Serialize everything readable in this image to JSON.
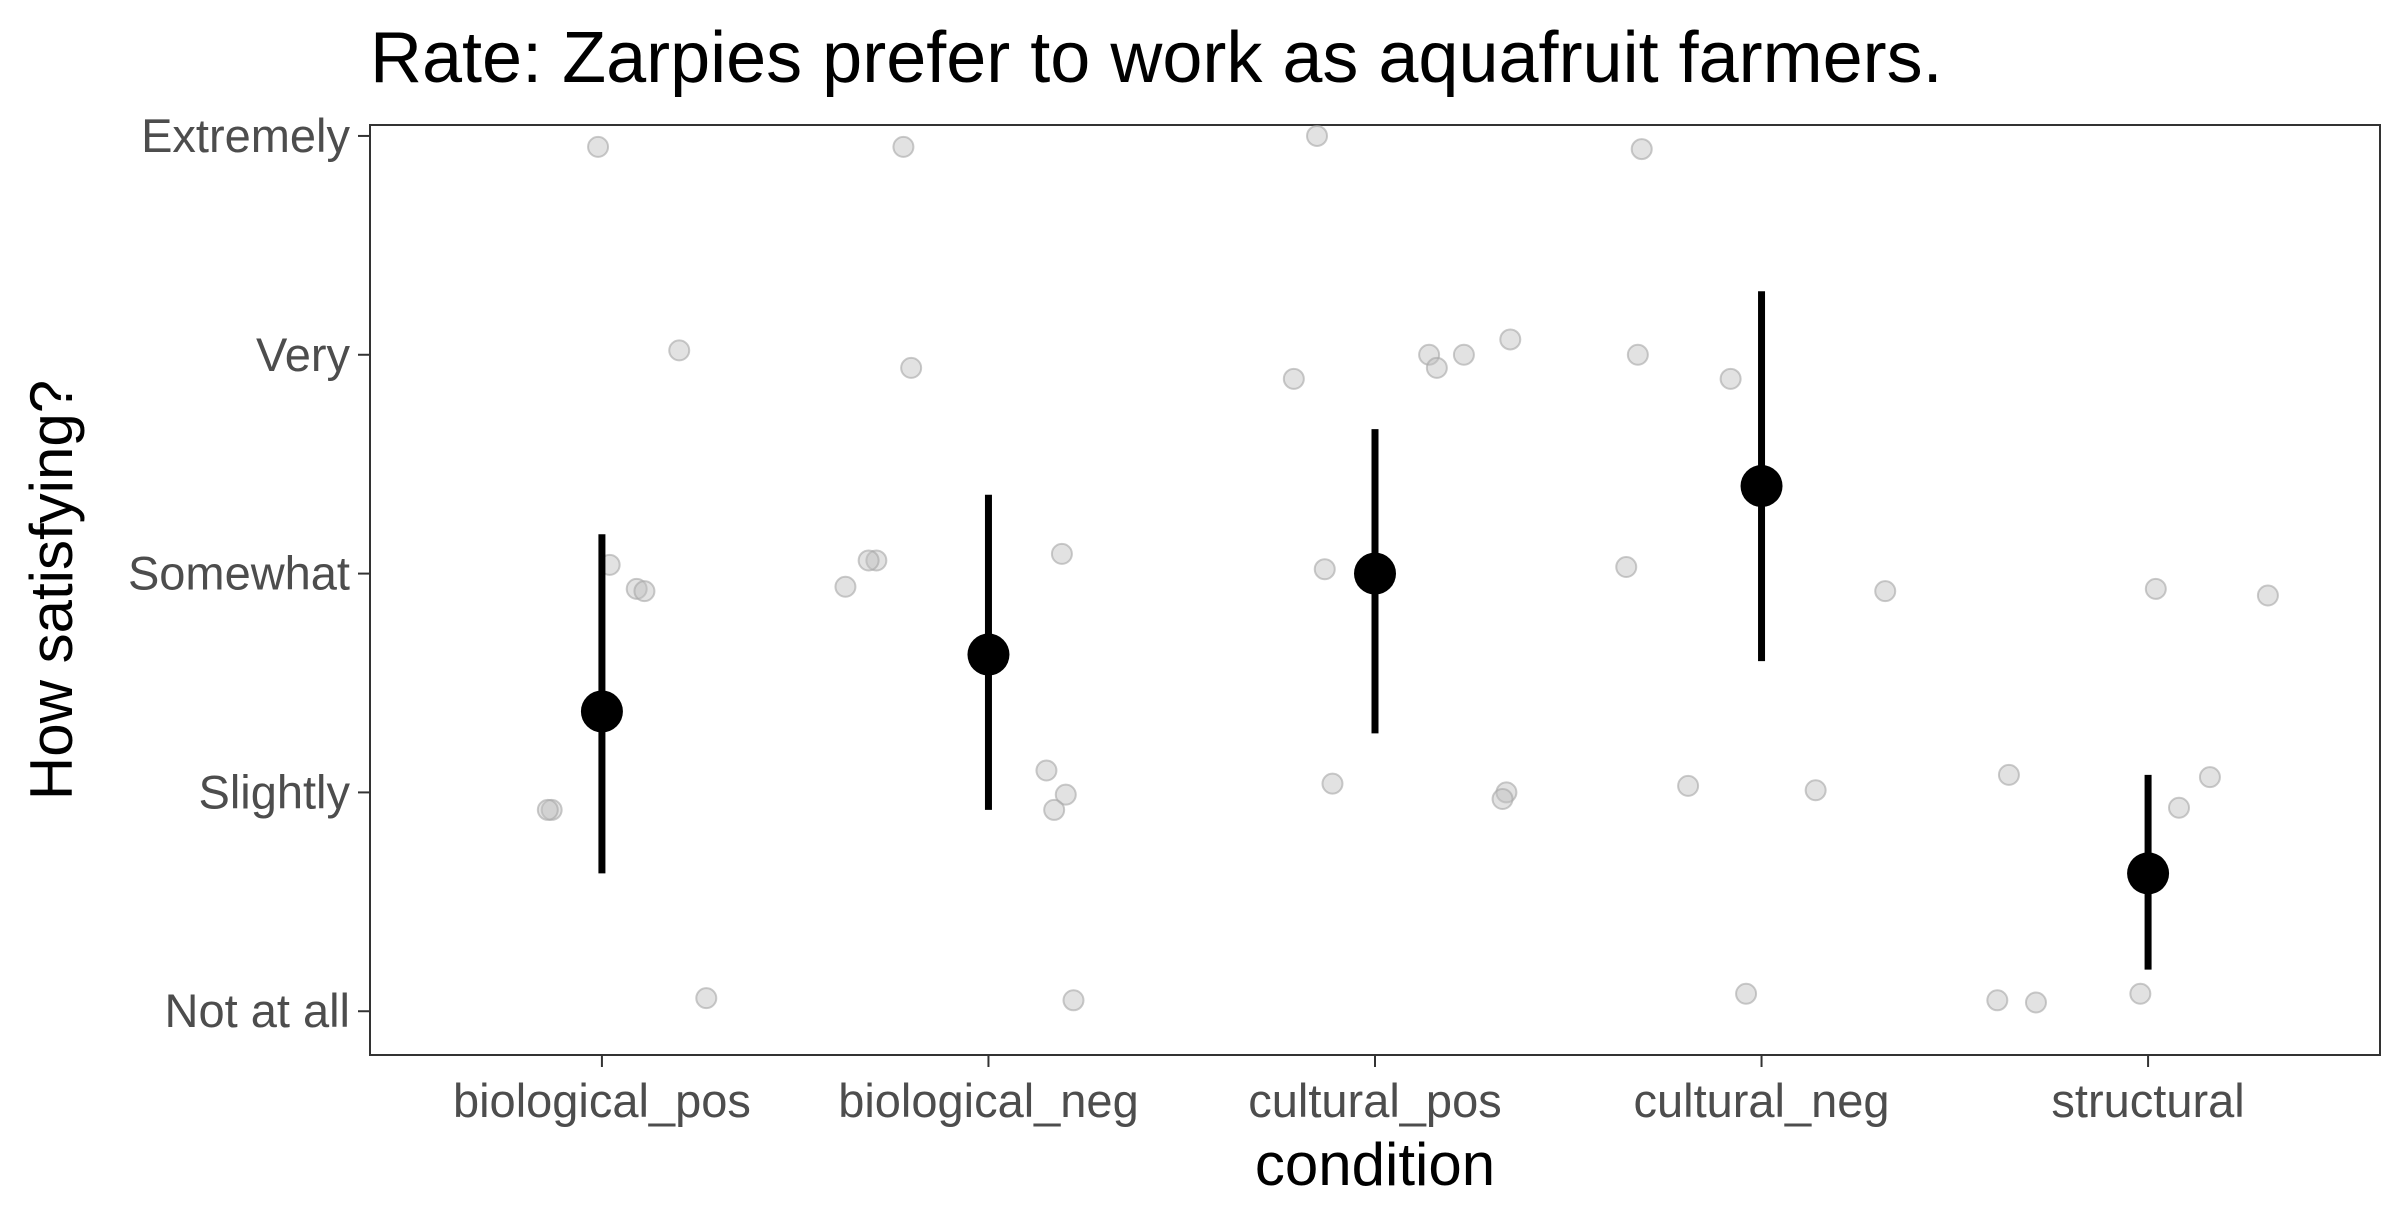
{
  "chart_data": {
    "type": "scatter",
    "title": "Rate: Zarpies prefer to work as aquafruit farmers.",
    "xlabel": "condition",
    "ylabel": "How satisfying?",
    "categories": [
      "biological_pos",
      "biological_neg",
      "cultural_pos",
      "cultural_neg",
      "structural"
    ],
    "y_tick_labels": [
      "Not at all",
      "Slightly",
      "Somewhat",
      "Very",
      "Extremely"
    ],
    "ylim": [
      0.8,
      5.05
    ],
    "grid": false,
    "summary_series": {
      "means": [
        2.37,
        2.63,
        3.0,
        3.4,
        1.63
      ],
      "ci_low": [
        1.63,
        1.92,
        2.27,
        2.6,
        1.19
      ],
      "ci_high": [
        3.18,
        3.36,
        3.66,
        4.29,
        2.08
      ]
    },
    "raw_points": [
      {
        "category": "biological_pos",
        "values": [
          4.95,
          4.02,
          3.04,
          2.93,
          2.92,
          1.92,
          1.92,
          1.06
        ]
      },
      {
        "category": "biological_neg",
        "values": [
          4.95,
          3.94,
          3.06,
          3.06,
          2.94,
          3.09,
          2.1,
          1.99,
          1.92,
          1.05
        ]
      },
      {
        "category": "cultural_pos",
        "values": [
          5.0,
          4.0,
          3.94,
          4.0,
          4.07,
          3.89,
          3.02,
          2.04,
          2.0,
          1.97
        ]
      },
      {
        "category": "cultural_neg",
        "values": [
          4.94,
          4.0,
          3.89,
          3.03,
          2.92,
          2.03,
          2.01,
          1.08
        ]
      },
      {
        "category": "structural",
        "values": [
          2.93,
          2.9,
          2.08,
          2.07,
          1.93,
          1.05,
          1.04,
          1.08
        ]
      }
    ],
    "x_offsets": [
      [
        -0.01,
        0.2,
        0.02,
        0.09,
        0.11,
        -0.13,
        -0.14,
        0.27
      ],
      [
        -0.22,
        -0.2,
        -0.29,
        -0.31,
        -0.37,
        0.19,
        0.15,
        0.2,
        0.17,
        0.22
      ],
      [
        -0.15,
        0.14,
        0.16,
        0.23,
        0.35,
        -0.21,
        -0.13,
        -0.11,
        0.34,
        0.33
      ],
      [
        -0.31,
        -0.32,
        -0.08,
        -0.35,
        0.32,
        -0.19,
        0.14,
        -0.04
      ],
      [
        0.02,
        0.31,
        -0.36,
        0.16,
        0.08,
        -0.39,
        -0.29,
        -0.02
      ]
    ],
    "colors": {
      "points": "#bfbfbf",
      "point_stroke": "#a6a6a6",
      "summary": "#000000",
      "panel_border": "#333333",
      "tick_text": "#4d4d4d"
    }
  }
}
